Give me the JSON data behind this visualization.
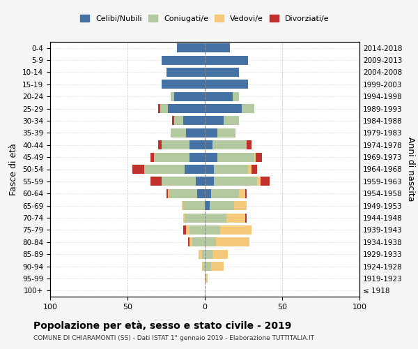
{
  "age_groups": [
    "100+",
    "95-99",
    "90-94",
    "85-89",
    "80-84",
    "75-79",
    "70-74",
    "65-69",
    "60-64",
    "55-59",
    "50-54",
    "45-49",
    "40-44",
    "35-39",
    "30-34",
    "25-29",
    "20-24",
    "15-19",
    "10-14",
    "5-9",
    "0-4"
  ],
  "birth_years": [
    "≤ 1918",
    "1919-1923",
    "1924-1928",
    "1929-1933",
    "1934-1938",
    "1939-1943",
    "1944-1948",
    "1949-1953",
    "1954-1958",
    "1959-1963",
    "1964-1968",
    "1969-1973",
    "1974-1978",
    "1979-1983",
    "1984-1988",
    "1989-1993",
    "1994-1998",
    "1999-2003",
    "2004-2008",
    "2009-2013",
    "2014-2018"
  ],
  "males": {
    "celibi": [
      0,
      0,
      0,
      0,
      0,
      0,
      0,
      0,
      5,
      6,
      13,
      10,
      10,
      12,
      14,
      24,
      20,
      28,
      25,
      28,
      18
    ],
    "coniugati": [
      0,
      0,
      1,
      2,
      8,
      10,
      13,
      14,
      18,
      22,
      26,
      23,
      18,
      10,
      6,
      5,
      2,
      0,
      0,
      0,
      0
    ],
    "vedovi": [
      0,
      0,
      1,
      2,
      2,
      2,
      1,
      1,
      1,
      0,
      0,
      0,
      0,
      0,
      0,
      0,
      0,
      0,
      0,
      0,
      0
    ],
    "divorziati": [
      0,
      0,
      0,
      0,
      1,
      2,
      0,
      0,
      1,
      7,
      8,
      2,
      2,
      0,
      1,
      1,
      0,
      0,
      0,
      0,
      0
    ]
  },
  "females": {
    "nubili": [
      0,
      0,
      0,
      0,
      0,
      0,
      0,
      3,
      4,
      6,
      6,
      8,
      5,
      8,
      12,
      24,
      18,
      28,
      22,
      28,
      16
    ],
    "coniugate": [
      0,
      1,
      4,
      5,
      7,
      10,
      14,
      16,
      18,
      28,
      22,
      24,
      22,
      12,
      10,
      8,
      4,
      0,
      0,
      0,
      0
    ],
    "vedove": [
      0,
      1,
      8,
      10,
      22,
      20,
      12,
      8,
      4,
      2,
      2,
      1,
      0,
      0,
      0,
      0,
      0,
      0,
      0,
      0,
      0
    ],
    "divorziate": [
      0,
      0,
      0,
      0,
      0,
      0,
      1,
      0,
      1,
      6,
      4,
      4,
      3,
      0,
      0,
      0,
      0,
      0,
      0,
      0,
      0
    ]
  },
  "colors": {
    "celibi": "#4472a4",
    "coniugati": "#b5c9a1",
    "vedovi": "#f5c97a",
    "divorziati": "#c0312b"
  },
  "title": "Popolazione per età, sesso e stato civile - 2019",
  "subtitle": "COMUNE DI CHIARAMONTI (SS) - Dati ISTAT 1° gennaio 2019 - Elaborazione TUTTITALIA.IT",
  "ylabel_left": "Fasce di età",
  "ylabel_right": "Anni di nascita",
  "xlim": 100,
  "legend_labels": [
    "Celibi/Nubili",
    "Coniugati/e",
    "Vedovi/e",
    "Divorziati/e"
  ],
  "bg_color": "#f5f5f5",
  "plot_bg": "#ffffff"
}
